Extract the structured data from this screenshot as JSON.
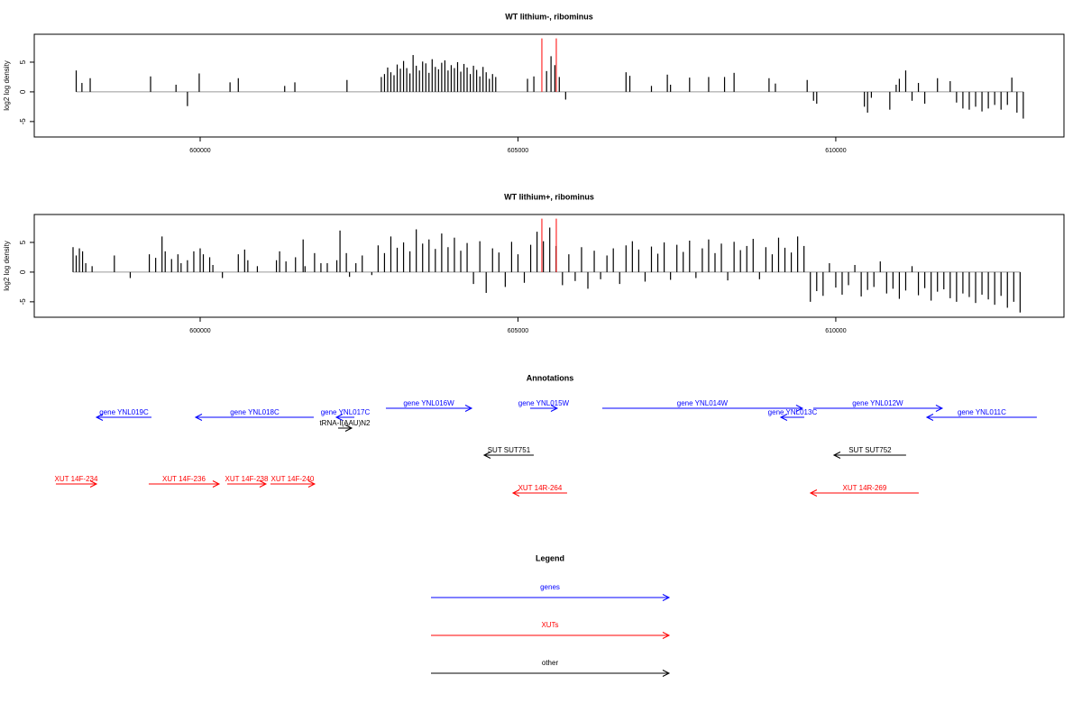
{
  "chart_data": [
    {
      "type": "bar",
      "title": "WT lithium-, ribominus",
      "ylabel": "log2 log density",
      "xlim": [
        597390,
        613590
      ],
      "ylim": [
        -7.6,
        9.7
      ],
      "xticks": [
        600000,
        605000,
        610000
      ],
      "yticks": [
        -5,
        0,
        5
      ],
      "color": "#000000",
      "x": [
        598050,
        598140,
        598270,
        599220,
        599620,
        599800,
        599985,
        600470,
        600600,
        601330,
        601490,
        602310,
        602850,
        602900,
        602950,
        603000,
        603050,
        603100,
        603150,
        603200,
        603250,
        603300,
        603350,
        603400,
        603450,
        603500,
        603550,
        603600,
        603650,
        603700,
        603750,
        603800,
        603850,
        603900,
        603950,
        604000,
        604050,
        604100,
        604150,
        604200,
        604250,
        604300,
        604350,
        604400,
        604450,
        604500,
        604550,
        604600,
        604650,
        605150,
        605250,
        605450,
        605520,
        605580,
        605650,
        605750,
        606700,
        606760,
        607100,
        607350,
        607400,
        607700,
        608000,
        608250,
        608400,
        608950,
        609050,
        609550,
        609650,
        609700,
        610450,
        610500,
        610560,
        610850,
        610950,
        611000,
        611100,
        611200,
        611300,
        611400,
        611600,
        611800,
        611900,
        612000,
        612100,
        612200,
        612300,
        612400,
        612500,
        612600,
        612700,
        612770,
        612850,
        612950
      ],
      "values": [
        3.6,
        1.5,
        2.3,
        2.6,
        1.2,
        -2.4,
        3.1,
        1.6,
        2.3,
        1.0,
        1.6,
        2.0,
        2.5,
        3.0,
        4.1,
        3.3,
        2.8,
        4.6,
        3.9,
        5.2,
        4.0,
        3.1,
        6.2,
        4.4,
        3.6,
        5.1,
        4.8,
        3.2,
        5.5,
        4.2,
        3.8,
        4.9,
        5.3,
        3.6,
        4.5,
        4.0,
        5.0,
        3.4,
        4.7,
        4.1,
        3.0,
        4.4,
        3.7,
        2.6,
        4.2,
        3.3,
        2.2,
        3.0,
        2.5,
        2.2,
        2.6,
        3.5,
        6.0,
        4.5,
        2.5,
        -1.3,
        3.3,
        2.7,
        1.0,
        2.9,
        1.2,
        2.4,
        2.5,
        2.5,
        3.2,
        2.3,
        1.4,
        2.0,
        -1.5,
        -2.0,
        -2.5,
        -3.5,
        -1.0,
        -3.0,
        1.2,
        2.2,
        3.6,
        -1.5,
        1.5,
        -2.0,
        2.3,
        1.8,
        -1.8,
        -2.8,
        -3.0,
        -2.5,
        -3.3,
        -2.8,
        -2.2,
        -3.0,
        -2.2,
        2.4,
        -3.5,
        -4.5
      ],
      "highlights": {
        "x": [
          605376,
          605603
        ],
        "values": [
          9,
          9
        ],
        "color": "#ff0000"
      }
    },
    {
      "type": "bar",
      "title": "WT lithium+, ribominus",
      "ylabel": "log2 log density",
      "xlim": [
        597390,
        613590
      ],
      "ylim": [
        -7.6,
        9.7
      ],
      "xticks": [
        600000,
        605000,
        610000
      ],
      "yticks": [
        -5,
        0,
        5
      ],
      "color": "#000000",
      "x": [
        598000,
        598050,
        598100,
        598150,
        598200,
        598300,
        598650,
        598900,
        599200,
        599300,
        599400,
        599450,
        599550,
        599650,
        599700,
        599800,
        599900,
        600000,
        600050,
        600150,
        600200,
        600350,
        600600,
        600700,
        600750,
        600900,
        601200,
        601250,
        601350,
        601500,
        601620,
        601650,
        601800,
        601900,
        602000,
        602150,
        602200,
        602300,
        602350,
        602450,
        602550,
        602700,
        602800,
        602900,
        603000,
        603100,
        603200,
        603300,
        603400,
        603500,
        603600,
        603700,
        603800,
        603900,
        604000,
        604100,
        604200,
        604300,
        604400,
        604500,
        604600,
        604700,
        604800,
        604900,
        605000,
        605100,
        605200,
        605300,
        605400,
        605500,
        605600,
        605700,
        605800,
        605900,
        606000,
        606100,
        606200,
        606300,
        606400,
        606500,
        606600,
        606700,
        606800,
        606900,
        607000,
        607100,
        607200,
        607300,
        607400,
        607500,
        607600,
        607700,
        607800,
        607900,
        608000,
        608100,
        608200,
        608300,
        608400,
        608500,
        608600,
        608700,
        608800,
        608900,
        609000,
        609100,
        609200,
        609300,
        609400,
        609500,
        609600,
        609700,
        609800,
        609900,
        610000,
        610100,
        610200,
        610300,
        610400,
        610500,
        610600,
        610700,
        610800,
        610900,
        611000,
        611100,
        611200,
        611300,
        611400,
        611500,
        611600,
        611700,
        611800,
        611900,
        612000,
        612100,
        612200,
        612300,
        612400,
        612500,
        612600,
        612700,
        612800,
        612900
      ],
      "values": [
        4.2,
        2.8,
        4.0,
        3.5,
        1.5,
        1.0,
        2.8,
        -1.0,
        3.0,
        2.4,
        6.0,
        3.5,
        2.2,
        3.0,
        1.5,
        2.0,
        3.5,
        4.0,
        3.0,
        2.5,
        1.2,
        -1.0,
        3.0,
        3.8,
        2.0,
        1.0,
        2.0,
        3.5,
        1.8,
        2.5,
        5.5,
        1.0,
        3.2,
        1.5,
        1.5,
        2.0,
        7.0,
        3.2,
        -0.8,
        1.5,
        2.8,
        -0.5,
        4.5,
        3.2,
        6.0,
        4.1,
        5.0,
        3.5,
        7.2,
        4.8,
        5.5,
        3.9,
        6.5,
        4.2,
        5.8,
        3.6,
        4.9,
        -2.0,
        5.2,
        -3.5,
        4.0,
        3.3,
        -2.5,
        5.1,
        3.0,
        -1.8,
        4.6,
        6.8,
        5.2,
        7.5,
        4.4,
        -2.2,
        3.0,
        -1.5,
        4.2,
        -2.8,
        3.6,
        -1.2,
        2.8,
        4.0,
        -2.0,
        4.5,
        5.2,
        3.8,
        -1.6,
        4.3,
        3.1,
        5.0,
        -1.3,
        4.6,
        3.4,
        5.3,
        -1.0,
        4.0,
        5.5,
        3.2,
        4.8,
        -1.4,
        5.1,
        3.7,
        4.4,
        5.6,
        -1.2,
        4.2,
        3.0,
        5.8,
        4.1,
        3.3,
        6.0,
        4.4,
        -5.0,
        -3.2,
        -4.0,
        1.5,
        -2.6,
        -3.8,
        -2.2,
        1.2,
        -4.1,
        -3.0,
        -2.5,
        1.8,
        -3.6,
        -2.8,
        -4.5,
        -3.1,
        1.0,
        -3.9,
        -2.7,
        -4.8,
        -3.3,
        -2.9,
        -4.4,
        -5.0,
        -3.6,
        -4.2,
        -5.2,
        -3.8,
        -4.6,
        -5.5,
        -4.0,
        -6.0,
        -5.0,
        -6.8
      ],
      "highlights": {
        "x": [
          605376,
          605603
        ],
        "values": [
          9,
          9
        ],
        "color": "#ff0000"
      }
    }
  ],
  "annotations": {
    "title": "Annotations",
    "features": [
      {
        "label": "gene YNL019C",
        "start": 598369,
        "end": 599234,
        "strand": "-",
        "group": 0
      },
      {
        "label": "gene YNL018C",
        "start": 599929,
        "end": 601787,
        "strand": "-",
        "group": 0
      },
      {
        "label": "gene YNL017C",
        "start": 602142,
        "end": 602426,
        "strand": "-",
        "group": 0
      },
      {
        "label": "tRNA-I(AAU)N2",
        "start": 602170,
        "end": 602383,
        "strand": "+",
        "group": 2
      },
      {
        "label": "gene YNL016W",
        "start": 602922,
        "end": 604270,
        "strand": "+",
        "group": 0
      },
      {
        "label": "gene YNL015W",
        "start": 605191,
        "end": 605617,
        "strand": "+",
        "group": 0
      },
      {
        "label": "gene YNL014W",
        "start": 606326,
        "end": 609475,
        "strand": "+",
        "group": 0
      },
      {
        "label": "gene YNL013C",
        "start": 609135,
        "end": 609504,
        "strand": "-",
        "group": 0
      },
      {
        "label": "gene YNL012W",
        "start": 609645,
        "end": 611674,
        "strand": "+",
        "group": 0
      },
      {
        "label": "gene YNL011C",
        "start": 611433,
        "end": 613163,
        "strand": "-",
        "group": 0
      },
      {
        "label": "SUT SUT751",
        "start": 604468,
        "end": 605248,
        "strand": "-",
        "group": 2
      },
      {
        "label": "SUT SUT752",
        "start": 609972,
        "end": 611106,
        "strand": "-",
        "group": 2
      },
      {
        "label": "XUT 14F-234",
        "start": 597730,
        "end": 598369,
        "strand": "+",
        "group": 1
      },
      {
        "label": "XUT 14F-236",
        "start": 599191,
        "end": 600298,
        "strand": "+",
        "group": 1
      },
      {
        "label": "XUT 14F-238",
        "start": 600426,
        "end": 601035,
        "strand": "+",
        "group": 1
      },
      {
        "label": "XUT 14F-240",
        "start": 601106,
        "end": 601801,
        "strand": "+",
        "group": 1
      },
      {
        "label": "XUT 14R-264",
        "start": 604922,
        "end": 605773,
        "strand": "-",
        "group": 1
      },
      {
        "label": "XUT 14R-269",
        "start": 609603,
        "end": 611305,
        "strand": "-",
        "group": 1
      }
    ]
  },
  "legend": {
    "title": "Legend",
    "items": [
      {
        "name": "genes",
        "color": "#0000ff"
      },
      {
        "name": "XUTs",
        "color": "#ff0000"
      },
      {
        "name": "other",
        "color": "#000000"
      }
    ]
  }
}
